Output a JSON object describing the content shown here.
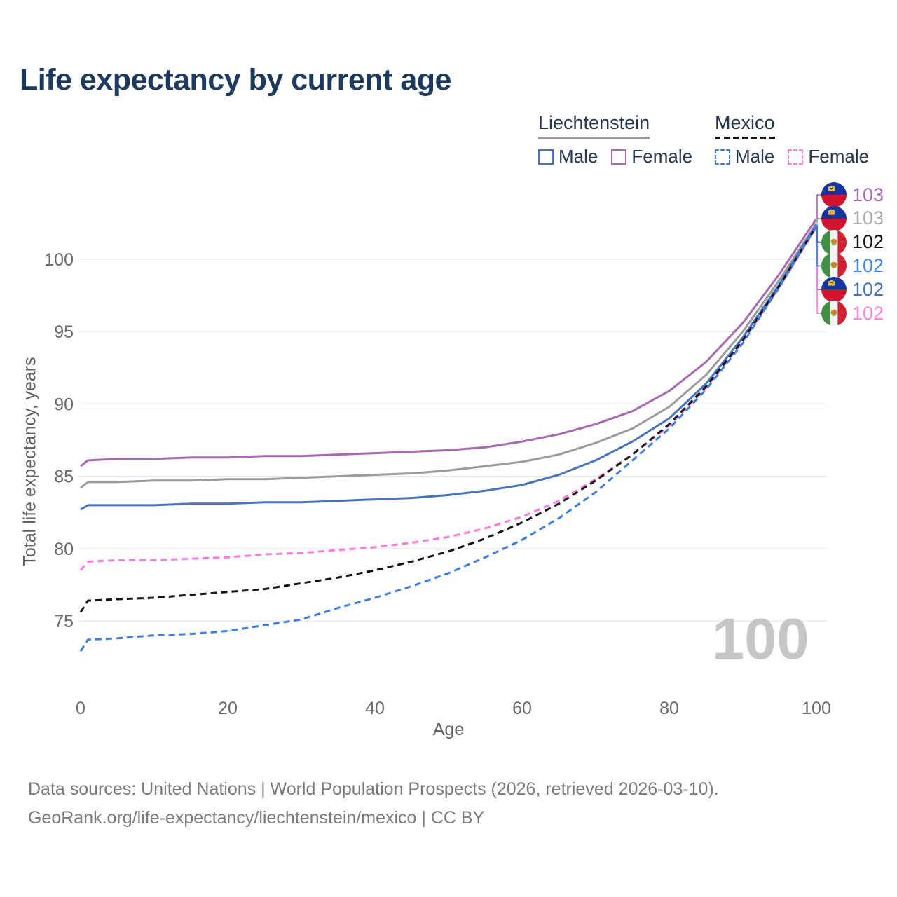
{
  "title": "Life expectancy by current age",
  "watermark": "100",
  "legend": {
    "groups": [
      {
        "name": "Liechtenstein",
        "line_style": "solid",
        "underline_color": "#9a9a9a",
        "items": [
          {
            "label": "Male",
            "color": "#4a73bd"
          },
          {
            "label": "Female",
            "color": "#a868b2"
          }
        ]
      },
      {
        "name": "Mexico",
        "line_style": "dashed",
        "underline_color": "#151515",
        "items": [
          {
            "label": "Male",
            "color": "#3f7de5"
          },
          {
            "label": "Female",
            "color": "#ff7ae0"
          }
        ]
      }
    ]
  },
  "footer": {
    "line1": "Data sources: United Nations | World Population Prospects (2026, retrieved 2026-03-10).",
    "line2": "GeoRank.org/life-expectancy/liechtenstein/mexico | CC BY"
  },
  "chart_data": {
    "type": "line",
    "title": "Life expectancy by current age",
    "xlabel": "Age",
    "ylabel": "Total life expectancy, years",
    "xlim": [
      0,
      100
    ],
    "ylim": [
      72,
      104
    ],
    "x_ticks": [
      0,
      20,
      40,
      60,
      80,
      100
    ],
    "y_ticks": [
      75,
      80,
      85,
      90,
      95,
      100
    ],
    "grid": "horizontal",
    "legend_position": "top-right",
    "hover_age_indicator": "100",
    "ages": [
      0,
      1,
      5,
      10,
      15,
      20,
      25,
      30,
      35,
      40,
      45,
      50,
      55,
      60,
      65,
      70,
      75,
      80,
      85,
      90,
      95,
      100
    ],
    "series": [
      {
        "name": "Liechtenstein Female",
        "country": "liechtenstein",
        "sex": "female",
        "style": "solid",
        "color": "#a868b2",
        "end_label": "103",
        "end_label_color": "#a46db4",
        "label_row": 0,
        "values": [
          85.7,
          86.1,
          86.2,
          86.2,
          86.3,
          86.3,
          86.4,
          86.4,
          86.5,
          86.6,
          86.7,
          86.8,
          87.0,
          87.4,
          87.9,
          88.6,
          89.5,
          90.9,
          92.9,
          95.6,
          99.0,
          102.8
        ]
      },
      {
        "name": "Liechtenstein",
        "country": "liechtenstein",
        "sex": "all",
        "style": "solid",
        "color": "#9b9b9b",
        "end_label": "103",
        "end_label_color": "#ababab",
        "label_row": 1,
        "values": [
          84.2,
          84.6,
          84.6,
          84.7,
          84.7,
          84.8,
          84.8,
          84.9,
          85.0,
          85.1,
          85.2,
          85.4,
          85.7,
          86.0,
          86.5,
          87.3,
          88.3,
          89.8,
          92.0,
          95.0,
          98.6,
          102.5
        ]
      },
      {
        "name": "Liechtenstein Male",
        "country": "liechtenstein",
        "sex": "male",
        "style": "solid",
        "color": "#4a73bd",
        "end_label": "102",
        "end_label_color": "#4a73bd",
        "label_row": 4,
        "values": [
          82.7,
          83.0,
          83.0,
          83.0,
          83.1,
          83.1,
          83.2,
          83.2,
          83.3,
          83.4,
          83.5,
          83.7,
          84.0,
          84.4,
          85.1,
          86.1,
          87.4,
          89.0,
          91.4,
          94.6,
          98.3,
          102.4
        ]
      },
      {
        "name": "Mexico Female",
        "country": "mexico",
        "sex": "female",
        "style": "dashed",
        "color": "#ff7ae0",
        "end_label": "102",
        "end_label_color": "#ff85e0",
        "label_row": 5,
        "values": [
          78.5,
          79.1,
          79.2,
          79.2,
          79.3,
          79.4,
          79.6,
          79.7,
          79.9,
          80.1,
          80.4,
          80.8,
          81.4,
          82.2,
          83.3,
          84.8,
          86.5,
          88.5,
          91.1,
          94.3,
          98.1,
          102.2
        ]
      },
      {
        "name": "Mexico",
        "country": "mexico",
        "sex": "all",
        "style": "dashed",
        "color": "#161616",
        "end_label": "102",
        "end_label_color": "#111111",
        "label_row": 2,
        "values": [
          75.6,
          76.4,
          76.5,
          76.6,
          76.8,
          77.0,
          77.2,
          77.6,
          78.0,
          78.5,
          79.1,
          79.8,
          80.7,
          81.8,
          83.1,
          84.7,
          86.5,
          88.6,
          91.2,
          94.4,
          98.2,
          102.3
        ]
      },
      {
        "name": "Mexico Male",
        "country": "mexico",
        "sex": "male",
        "style": "dashed",
        "color": "#3f7de5",
        "end_label": "102",
        "end_label_color": "#4285f4",
        "label_row": 3,
        "values": [
          72.9,
          73.7,
          73.8,
          74.0,
          74.1,
          74.3,
          74.7,
          75.1,
          75.9,
          76.6,
          77.4,
          78.3,
          79.4,
          80.6,
          82.1,
          83.9,
          86.1,
          88.3,
          91.0,
          94.2,
          98.1,
          102.3
        ]
      }
    ]
  }
}
